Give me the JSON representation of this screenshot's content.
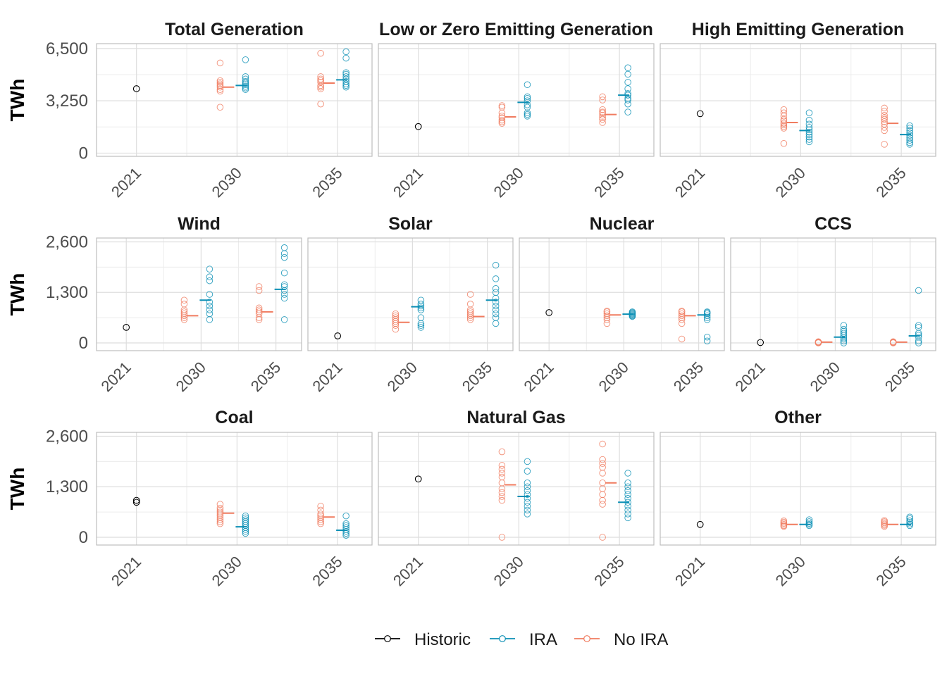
{
  "chart_data": {
    "type": "scatter",
    "description_free": true,
    "y_axis_label": "TWh",
    "x_categories": [
      "2021",
      "2030",
      "2035"
    ],
    "legend": {
      "position": "bottom",
      "items": [
        {
          "name": "Historic",
          "color": "#000000"
        },
        {
          "name": "IRA",
          "color": "#0b8fb5"
        },
        {
          "name": "No IRA",
          "color": "#f07b5f"
        }
      ]
    },
    "grid": true,
    "rows": [
      {
        "ylim": [
          -200,
          6800
        ],
        "yticks": [
          0,
          3250,
          6500
        ],
        "ytick_labels": [
          "0",
          "3,250",
          "6,500"
        ]
      },
      {
        "ylim": [
          -200,
          2700
        ],
        "yticks": [
          0,
          1300,
          2600
        ],
        "ytick_labels": [
          "0",
          "1,300",
          "2,600"
        ]
      },
      {
        "ylim": [
          -200,
          2700
        ],
        "yticks": [
          0,
          1300,
          2600
        ],
        "ytick_labels": [
          "0",
          "1,300",
          "2,600"
        ]
      }
    ],
    "panels": [
      {
        "title": "Total Generation",
        "row": 0,
        "historic": 4000,
        "series": {
          "No IRA": {
            "2030": {
              "values": [
                2850,
                3850,
                3950,
                4100,
                4200,
                4300,
                4400,
                4500,
                5600
              ],
              "mean": 4100
            },
            "2035": {
              "values": [
                3050,
                4000,
                4100,
                4200,
                4400,
                4500,
                4600,
                4750,
                6200
              ],
              "mean": 4350
            }
          },
          "IRA": {
            "2030": {
              "values": [
                3950,
                4050,
                4150,
                4250,
                4350,
                4450,
                4600,
                4750,
                5800
              ],
              "mean": 4200
            },
            "2035": {
              "values": [
                4100,
                4200,
                4300,
                4450,
                4600,
                4750,
                4900,
                5000,
                5900,
                6300
              ],
              "mean": 4550
            }
          }
        }
      },
      {
        "title": "Low or Zero Emitting Generation",
        "row": 0,
        "historic": 1650,
        "series": {
          "No IRA": {
            "2030": {
              "values": [
                1850,
                1950,
                2050,
                2200,
                2300,
                2500,
                2850,
                2950
              ],
              "mean": 2250
            },
            "2035": {
              "values": [
                1900,
                2100,
                2200,
                2350,
                2500,
                2550,
                2700,
                3300,
                3500
              ],
              "mean": 2400
            }
          },
          "IRA": {
            "2030": {
              "values": [
                2300,
                2400,
                2500,
                2850,
                3000,
                3250,
                3400,
                3500,
                4250
              ],
              "mean": 3150
            },
            "2035": {
              "values": [
                2550,
                3050,
                3300,
                3400,
                3600,
                3700,
                4000,
                4400,
                4900,
                5300
              ],
              "mean": 3600
            }
          }
        }
      },
      {
        "title": "High Emitting Generation",
        "row": 0,
        "historic": 2450,
        "series": {
          "No IRA": {
            "2030": {
              "values": [
                600,
                1550,
                1650,
                1750,
                1850,
                2000,
                2100,
                2300,
                2500,
                2700
              ],
              "mean": 1900
            },
            "2035": {
              "values": [
                550,
                1400,
                1600,
                1800,
                1950,
                2100,
                2200,
                2350,
                2600,
                2800
              ],
              "mean": 1850
            }
          },
          "IRA": {
            "2030": {
              "values": [
                700,
                850,
                1000,
                1150,
                1300,
                1450,
                1600,
                1800,
                2050,
                2500
              ],
              "mean": 1400
            },
            "2035": {
              "values": [
                550,
                650,
                800,
                950,
                1100,
                1250,
                1400,
                1550,
                1700
              ],
              "mean": 1150
            }
          }
        }
      },
      {
        "title": "Wind",
        "row": 1,
        "historic": 400,
        "series": {
          "No IRA": {
            "2030": {
              "values": [
                600,
                650,
                700,
                750,
                800,
                850,
                1000,
                1100
              ],
              "mean": 700
            },
            "2035": {
              "values": [
                600,
                650,
                750,
                800,
                850,
                900,
                1350,
                1450
              ],
              "mean": 800
            }
          },
          "IRA": {
            "2030": {
              "values": [
                600,
                750,
                850,
                950,
                1050,
                1250,
                1600,
                1700,
                1900
              ],
              "mean": 1100
            },
            "2035": {
              "values": [
                600,
                1150,
                1250,
                1350,
                1450,
                1500,
                1800,
                2200,
                2300,
                2450
              ],
              "mean": 1380
            }
          }
        }
      },
      {
        "title": "Solar",
        "row": 1,
        "historic": 180,
        "series": {
          "No IRA": {
            "2030": {
              "values": [
                350,
                450,
                500,
                550,
                600,
                650,
                700,
                750
              ],
              "mean": 530
            },
            "2035": {
              "values": [
                600,
                650,
                700,
                750,
                800,
                850,
                1000,
                1250
              ],
              "mean": 680
            }
          },
          "IRA": {
            "2030": {
              "values": [
                400,
                450,
                500,
                650,
                850,
                900,
                950,
                1000,
                1100
              ],
              "mean": 930
            },
            "2035": {
              "values": [
                500,
                650,
                750,
                850,
                950,
                1050,
                1150,
                1300,
                1400,
                1650,
                2000
              ],
              "mean": 1100
            }
          }
        }
      },
      {
        "title": "Nuclear",
        "row": 1,
        "historic": 780,
        "series": {
          "No IRA": {
            "2030": {
              "values": [
                500,
                600,
                650,
                700,
                750,
                800,
                820
              ],
              "mean": 720
            },
            "2035": {
              "values": [
                100,
                500,
                600,
                650,
                700,
                750,
                800,
                820
              ],
              "mean": 700
            }
          },
          "IRA": {
            "2030": {
              "values": [
                680,
                700,
                720,
                740,
                760,
                780,
                800
              ],
              "mean": 740
            },
            "2035": {
              "values": [
                50,
                150,
                600,
                650,
                700,
                750,
                780,
                800
              ],
              "mean": 720
            }
          }
        }
      },
      {
        "title": "CCS",
        "row": 1,
        "historic": 10,
        "series": {
          "No IRA": {
            "2030": {
              "values": [
                0,
                10,
                20,
                30
              ],
              "mean": 20
            },
            "2035": {
              "values": [
                0,
                10,
                20,
                30
              ],
              "mean": 20
            }
          },
          "IRA": {
            "2030": {
              "values": [
                0,
                50,
                100,
                150,
                200,
                250,
                300,
                350,
                450
              ],
              "mean": 150
            },
            "2035": {
              "values": [
                0,
                50,
                150,
                200,
                250,
                400,
                450,
                1350
              ],
              "mean": 180
            }
          }
        }
      },
      {
        "title": "Coal",
        "row": 2,
        "historic": 950,
        "historic_extra": [
          900
        ],
        "series": {
          "No IRA": {
            "2030": {
              "values": [
                350,
                400,
                450,
                500,
                550,
                600,
                650,
                700,
                750,
                850
              ],
              "mean": 620
            },
            "2035": {
              "values": [
                350,
                400,
                450,
                500,
                550,
                600,
                700,
                800
              ],
              "mean": 520
            }
          },
          "IRA": {
            "2030": {
              "values": [
                100,
                150,
                200,
                250,
                300,
                350,
                400,
                450,
                500,
                550
              ],
              "mean": 270
            },
            "2035": {
              "values": [
                50,
                100,
                150,
                200,
                250,
                300,
                350,
                550
              ],
              "mean": 180
            }
          }
        }
      },
      {
        "title": "Natural Gas",
        "row": 2,
        "historic": 1500,
        "series": {
          "No IRA": {
            "2030": {
              "values": [
                0,
                950,
                1050,
                1150,
                1250,
                1400,
                1550,
                1650,
                1750,
                1850,
                2200
              ],
              "mean": 1350
            },
            "2035": {
              "values": [
                0,
                850,
                950,
                1100,
                1250,
                1400,
                1650,
                1800,
                1900,
                2000,
                2400
              ],
              "mean": 1400
            }
          },
          "IRA": {
            "2030": {
              "values": [
                600,
                700,
                800,
                900,
                1000,
                1100,
                1200,
                1300,
                1400,
                1700,
                1950
              ],
              "mean": 1050
            },
            "2035": {
              "values": [
                500,
                600,
                700,
                800,
                900,
                1000,
                1100,
                1200,
                1300,
                1400,
                1650
              ],
              "mean": 900
            }
          }
        }
      },
      {
        "title": "Other",
        "row": 2,
        "historic": 330,
        "series": {
          "No IRA": {
            "2030": {
              "values": [
                280,
                300,
                330,
                360,
                390,
                420
              ],
              "mean": 330
            },
            "2035": {
              "values": [
                280,
                310,
                340,
                370,
                400,
                430
              ],
              "mean": 330
            }
          },
          "IRA": {
            "2030": {
              "values": [
                300,
                330,
                360,
                400,
                450
              ],
              "mean": 330
            },
            "2035": {
              "values": [
                300,
                340,
                380,
                420,
                480,
                520
              ],
              "mean": 330
            }
          }
        }
      }
    ]
  }
}
